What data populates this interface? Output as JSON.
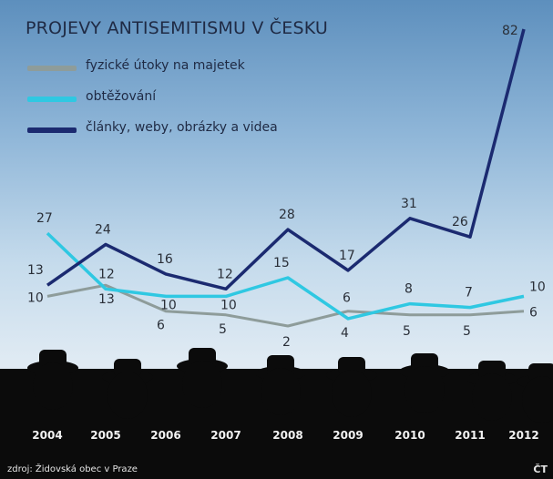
{
  "chart_data": {
    "type": "line",
    "title": "PROJEVY ANTISEMITISMU V ČESKU",
    "categories": [
      "2004",
      "2005",
      "2006",
      "2007",
      "2008",
      "2009",
      "2010",
      "2011",
      "2012"
    ],
    "series": [
      {
        "name": "fyzické útoky na majetek",
        "values": [
          10,
          13,
          6,
          5,
          2,
          6,
          5,
          5,
          6
        ],
        "color": "#8e9c9a"
      },
      {
        "name": "obtěžování",
        "values": [
          27,
          12,
          10,
          10,
          15,
          4,
          8,
          7,
          10
        ],
        "color": "#2fc8e2"
      },
      {
        "name": "články, weby, obrázky a videa",
        "values": [
          13,
          24,
          16,
          12,
          28,
          17,
          31,
          26,
          82
        ],
        "color": "#1b2a70"
      }
    ],
    "grid": false,
    "legend": "top-left"
  },
  "source": "zdroj: Židovská obec v Praze",
  "credit": "ČT"
}
